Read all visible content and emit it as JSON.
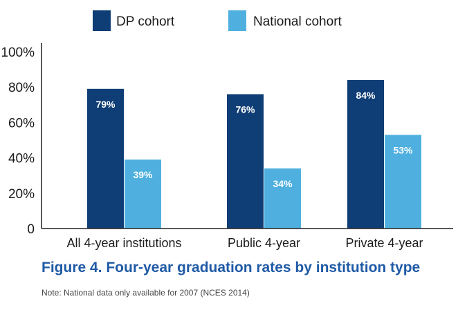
{
  "chart_data": {
    "type": "bar",
    "categories": [
      "All 4-year institutions",
      "Public 4-year",
      "Private 4-year"
    ],
    "series": [
      {
        "name": "DP cohort",
        "values": [
          79,
          76,
          84
        ],
        "labels": [
          "79%",
          "76%",
          "84%"
        ],
        "color": "#0f3d75"
      },
      {
        "name": "National cohort",
        "values": [
          39,
          34,
          53
        ],
        "labels": [
          "39%",
          "34%",
          "53%"
        ],
        "color": "#4fb0e0"
      }
    ],
    "yticks": [
      {
        "value": 0,
        "label": "0"
      },
      {
        "value": 20,
        "label": "20%"
      },
      {
        "value": 40,
        "label": "40%"
      },
      {
        "value": 60,
        "label": "60%"
      },
      {
        "value": 80,
        "label": "80%"
      },
      {
        "value": 100,
        "label": "100%"
      }
    ],
    "ylim": [
      0,
      100
    ],
    "grid": false,
    "legend_position": "top-center",
    "title": "",
    "xlabel": "",
    "ylabel": ""
  },
  "caption": "Figure 4. Four-year graduation rates by institution type",
  "note": "Note: National data only available for 2007 (NCES 2014)"
}
